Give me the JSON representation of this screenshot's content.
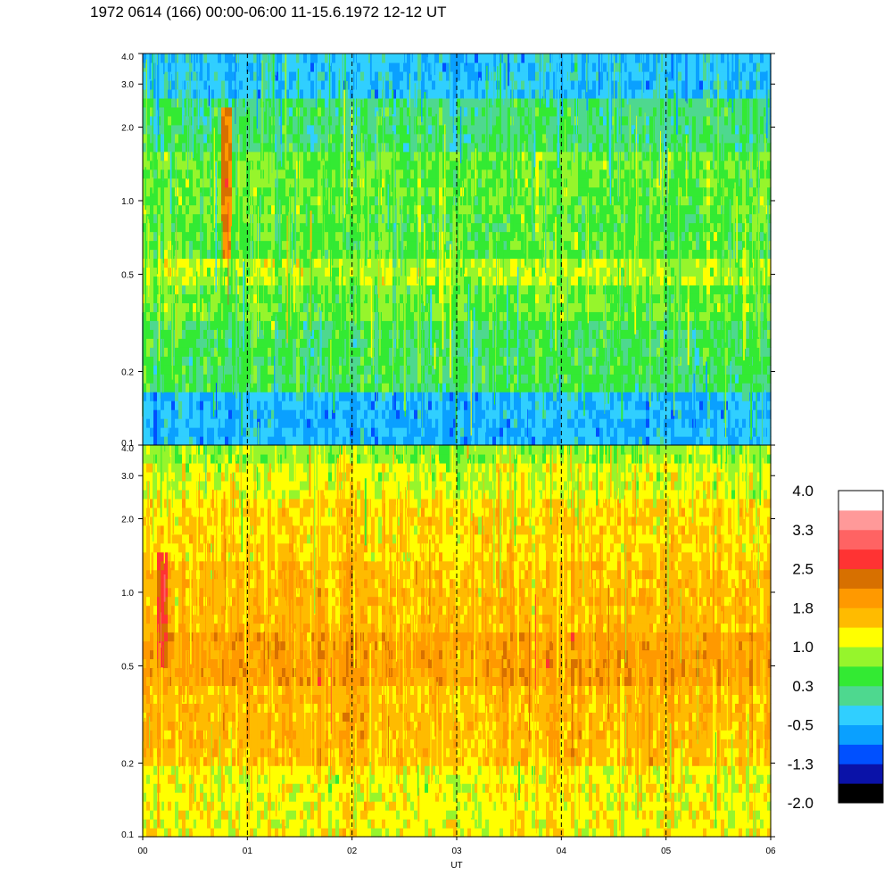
{
  "title": "1972 0614 (166) 00:00-06:00 11-15.6.1972  12-12 UT",
  "chart_data": {
    "type": "heatmap",
    "panels": [
      {
        "name": "upper",
        "y_scale": "log",
        "ylim": [
          0.1,
          4.0
        ],
        "yticks": [
          "4.0",
          "3.0",
          "2.0",
          "1.0",
          "0.5",
          "0.2",
          "0.1"
        ],
        "ytick_values": [
          4.0,
          3.0,
          2.0,
          1.0,
          0.5,
          0.2,
          0.1
        ],
        "bands": [
          {
            "y0": 0.1,
            "y1": 0.16,
            "level": -0.5
          },
          {
            "y0": 0.16,
            "y1": 0.32,
            "level": 0.3
          },
          {
            "y0": 0.32,
            "y1": 0.45,
            "level": 0.6
          },
          {
            "y0": 0.45,
            "y1": 0.6,
            "level": 0.9
          },
          {
            "y0": 0.6,
            "y1": 0.9,
            "level": 0.5
          },
          {
            "y0": 0.9,
            "y1": 1.6,
            "level": 0.6
          },
          {
            "y0": 1.6,
            "y1": 2.6,
            "level": 0.2
          },
          {
            "y0": 2.6,
            "y1": 4.0,
            "level": -0.4
          }
        ],
        "features": [
          {
            "x": 0.8,
            "y0": 0.6,
            "y1": 2.5,
            "level": 2.2
          }
        ]
      },
      {
        "name": "lower",
        "y_scale": "log",
        "ylim": [
          0.1,
          4.0
        ],
        "yticks": [
          "4.0",
          "3.0",
          "2.0",
          "1.0",
          "0.5",
          "0.2",
          "0.1"
        ],
        "ytick_values": [
          4.0,
          3.0,
          2.0,
          1.0,
          0.5,
          0.2,
          0.1
        ],
        "bands": [
          {
            "y0": 0.1,
            "y1": 0.2,
            "level": 1.2
          },
          {
            "y0": 0.2,
            "y1": 0.42,
            "level": 1.6
          },
          {
            "y0": 0.42,
            "y1": 0.7,
            "level": 1.9
          },
          {
            "y0": 0.7,
            "y1": 1.3,
            "level": 1.6
          },
          {
            "y0": 1.3,
            "y1": 2.4,
            "level": 1.4
          },
          {
            "y0": 2.4,
            "y1": 3.3,
            "level": 1.1
          },
          {
            "y0": 3.3,
            "y1": 4.0,
            "level": 0.8
          }
        ],
        "features": [
          {
            "x": 0.18,
            "y0": 0.5,
            "y1": 1.5,
            "level": 2.6
          }
        ]
      }
    ],
    "x": {
      "label": "UT",
      "range": [
        0,
        6
      ],
      "ticks": [
        "00",
        "01",
        "02",
        "03",
        "04",
        "05",
        "06"
      ],
      "tick_values": [
        0,
        1,
        2,
        3,
        4,
        5,
        6
      ]
    },
    "hour_markers": [
      1,
      2,
      3,
      4,
      5
    ],
    "colorbar": {
      "labels": [
        "4.0",
        "3.3",
        "2.5",
        "1.8",
        "1.0",
        "0.3",
        "-0.5",
        "-1.3",
        "-2.0"
      ],
      "min": -2.0,
      "max": 4.0,
      "colors": [
        "#000000",
        "#0a12a8",
        "#0050ff",
        "#0aa0ff",
        "#30cfff",
        "#4ed88f",
        "#33ea33",
        "#96f52c",
        "#ffff00",
        "#ffbb00",
        "#ff9900",
        "#d77000",
        "#ff3333",
        "#ff6363",
        "#ff9999",
        "#ffffff"
      ]
    }
  }
}
